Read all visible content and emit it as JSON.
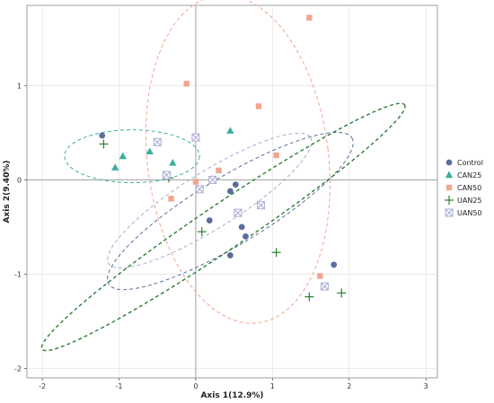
{
  "chart_data": {
    "type": "scatter",
    "title": "",
    "xlabel": "Axis 1(12.9%)",
    "ylabel": "Axis 2(9.40%)",
    "xlim": [
      -2.2,
      3.15
    ],
    "ylim": [
      -2.1,
      1.85
    ],
    "x_ticks": [
      -2,
      -1,
      0,
      1,
      2,
      3
    ],
    "y_ticks": [
      -2,
      -1,
      0,
      1
    ],
    "grid": true,
    "reference_lines": {
      "x": 0,
      "y": 0
    },
    "legend_position": "right",
    "series": [
      {
        "name": "Control",
        "marker": "circle",
        "color": "#5b6d9e",
        "points": [
          [
            -1.22,
            0.47
          ],
          [
            0.45,
            -0.12
          ],
          [
            0.52,
            -0.05
          ],
          [
            0.18,
            -0.43
          ],
          [
            0.6,
            -0.5
          ],
          [
            0.65,
            -0.6
          ],
          [
            0.45,
            -0.8
          ],
          [
            1.8,
            -0.9
          ]
        ]
      },
      {
        "name": "CAN25",
        "marker": "triangle",
        "color": "#3aaf9f",
        "points": [
          [
            -1.05,
            0.13
          ],
          [
            -0.95,
            0.25
          ],
          [
            -0.6,
            0.3
          ],
          [
            -0.3,
            0.18
          ],
          [
            0.45,
            0.52
          ]
        ]
      },
      {
        "name": "CAN50",
        "marker": "square",
        "color": "#f2a58e",
        "points": [
          [
            1.48,
            1.72
          ],
          [
            -0.12,
            1.02
          ],
          [
            0.82,
            0.78
          ],
          [
            1.05,
            0.26
          ],
          [
            0.3,
            0.1
          ],
          [
            -0.32,
            -0.2
          ],
          [
            0.0,
            -0.02
          ],
          [
            1.62,
            -1.02
          ]
        ]
      },
      {
        "name": "UAN25",
        "marker": "plus",
        "color": "#2e7d32",
        "points": [
          [
            -1.2,
            0.38
          ],
          [
            -0.35,
            0.02
          ],
          [
            0.08,
            -0.55
          ],
          [
            1.05,
            -0.77
          ],
          [
            1.48,
            -1.24
          ],
          [
            1.9,
            -1.2
          ]
        ]
      },
      {
        "name": "UAN50",
        "marker": "boxcross",
        "color": "#a8acd2",
        "points": [
          [
            -0.5,
            0.4
          ],
          [
            0.0,
            0.45
          ],
          [
            -0.38,
            0.05
          ],
          [
            0.05,
            -0.1
          ],
          [
            0.22,
            0.0
          ],
          [
            0.85,
            -0.27
          ],
          [
            0.55,
            -0.35
          ],
          [
            1.68,
            -1.13
          ]
        ]
      }
    ],
    "ellipses": [
      {
        "series": "Control",
        "color": "#5b6d9e",
        "cx": 0.45,
        "cy": -0.33,
        "rx": 1.85,
        "ry": 0.36,
        "angle_deg": -31
      },
      {
        "series": "CAN25",
        "color": "#3aaf9f",
        "cx": -0.83,
        "cy": 0.25,
        "rx": 0.88,
        "ry": 0.28,
        "angle_deg": 0
      },
      {
        "series": "CAN50",
        "color": "#f2a58e",
        "cx": 0.55,
        "cy": 0.22,
        "rx": 1.18,
        "ry": 1.75,
        "angle_deg": -7
      },
      {
        "series": "UAN25",
        "color": "#2e7d32",
        "cx": 0.36,
        "cy": -0.5,
        "rx": 2.85,
        "ry": 0.24,
        "angle_deg": -34
      },
      {
        "series": "UAN50",
        "color": "#a8acd2",
        "cx": 0.18,
        "cy": -0.22,
        "rx": 1.55,
        "ry": 0.3,
        "angle_deg": -32
      }
    ]
  }
}
